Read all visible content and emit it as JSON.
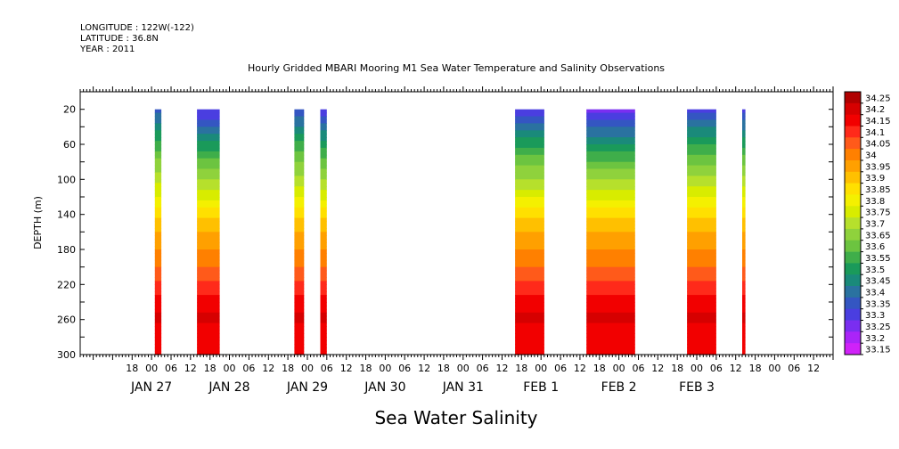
{
  "header": {
    "longitude": "LONGITUDE : 122W(-122)",
    "latitude": "LATITUDE : 36.8N",
    "year": "YEAR : 2011"
  },
  "chart_data": {
    "type": "heatmap",
    "title": "Hourly Gridded MBARI Mooring M1 Sea Water Temperature and Salinity Observations",
    "xlabel": "Sea Water Salinity",
    "ylabel": "DEPTH (m)",
    "y_axis": {
      "reversed": true,
      "ylim": [
        300,
        0
      ],
      "ticks": [
        20,
        60,
        100,
        140,
        180,
        220,
        260,
        300
      ]
    },
    "x_axis": {
      "unit": "hours since JAN 27 00:00",
      "xlim": [
        -22,
        210
      ],
      "hour_ticks": [
        {
          "h": -6,
          "label": "18"
        },
        {
          "h": 0,
          "label": "00"
        },
        {
          "h": 6,
          "label": "06"
        },
        {
          "h": 12,
          "label": "12"
        },
        {
          "h": 18,
          "label": "18"
        },
        {
          "h": 24,
          "label": "00"
        },
        {
          "h": 30,
          "label": "06"
        },
        {
          "h": 36,
          "label": "12"
        },
        {
          "h": 42,
          "label": "18"
        },
        {
          "h": 48,
          "label": "00"
        },
        {
          "h": 54,
          "label": "06"
        },
        {
          "h": 60,
          "label": "12"
        },
        {
          "h": 66,
          "label": "18"
        },
        {
          "h": 72,
          "label": "00"
        },
        {
          "h": 78,
          "label": "06"
        },
        {
          "h": 84,
          "label": "12"
        },
        {
          "h": 90,
          "label": "18"
        },
        {
          "h": 96,
          "label": "00"
        },
        {
          "h": 102,
          "label": "06"
        },
        {
          "h": 108,
          "label": "12"
        },
        {
          "h": 114,
          "label": "18"
        },
        {
          "h": 120,
          "label": "00"
        },
        {
          "h": 126,
          "label": "06"
        },
        {
          "h": 132,
          "label": "12"
        },
        {
          "h": 138,
          "label": "18"
        },
        {
          "h": 144,
          "label": "00"
        },
        {
          "h": 150,
          "label": "06"
        },
        {
          "h": 156,
          "label": "12"
        },
        {
          "h": 162,
          "label": "18"
        },
        {
          "h": 168,
          "label": "00"
        },
        {
          "h": 174,
          "label": "06"
        },
        {
          "h": 180,
          "label": "12"
        },
        {
          "h": 186,
          "label": "18"
        },
        {
          "h": 192,
          "label": "00"
        },
        {
          "h": 198,
          "label": "06"
        },
        {
          "h": 204,
          "label": "12"
        }
      ],
      "day_labels": [
        {
          "h": 0,
          "label": "JAN 27"
        },
        {
          "h": 24,
          "label": "JAN 28"
        },
        {
          "h": 48,
          "label": "JAN 29"
        },
        {
          "h": 72,
          "label": "JAN 30"
        },
        {
          "h": 96,
          "label": "JAN 31"
        },
        {
          "h": 120,
          "label": "FEB  1"
        },
        {
          "h": 144,
          "label": "FEB  2"
        },
        {
          "h": 168,
          "label": "FEB  3"
        }
      ]
    },
    "colorbar": {
      "levels": [
        34.25,
        34.2,
        34.15,
        34.1,
        34.05,
        34,
        33.95,
        33.9,
        33.85,
        33.8,
        33.75,
        33.7,
        33.65,
        33.6,
        33.55,
        33.5,
        33.45,
        33.4,
        33.35,
        33.3,
        33.25,
        33.2,
        33.15
      ],
      "labels": [
        "34.25",
        "34.2",
        "34.15",
        "34.1",
        "34.05",
        "34",
        "33.95",
        "33.9",
        "33.85",
        "33.8",
        "33.75",
        "33.7",
        "33.65",
        "33.6",
        "33.55",
        "33.5",
        "33.45",
        "33.4",
        "33.35",
        "33.3",
        "33.25",
        "33.2",
        "33.15"
      ],
      "colors": [
        "#b00000",
        "#d60000",
        "#f20000",
        "#ff2a1a",
        "#ff5a1a",
        "#ff8000",
        "#ffa000",
        "#ffc000",
        "#ffe000",
        "#f4f000",
        "#d8ec00",
        "#b6e02c",
        "#8fd23c",
        "#6cc440",
        "#3fae4a",
        "#1a9a5a",
        "#1a8a7a",
        "#2a72a0",
        "#3456c2",
        "#4a3ee0",
        "#7a2ef0",
        "#aa24f8",
        "#d022f8"
      ]
    },
    "profile": {
      "depth": [
        20,
        40,
        60,
        80,
        100,
        120,
        140,
        160,
        180,
        200,
        220,
        240,
        260,
        280,
        300
      ],
      "salinity": [
        33.35,
        33.46,
        33.56,
        33.65,
        33.72,
        33.8,
        33.88,
        33.95,
        34.0,
        34.05,
        34.12,
        34.17,
        34.22,
        34.15,
        34.15
      ]
    },
    "data_blocks": [
      {
        "start": 1,
        "end": 3,
        "surface_shift": 0.02
      },
      {
        "start": 14,
        "end": 21,
        "surface_shift": -0.06
      },
      {
        "start": 44,
        "end": 47,
        "surface_shift": 0.0
      },
      {
        "start": 52,
        "end": 54,
        "surface_shift": -0.05
      },
      {
        "start": 112,
        "end": 121,
        "surface_shift": -0.04
      },
      {
        "start": 134,
        "end": 149,
        "surface_shift": -0.08
      },
      {
        "start": 165,
        "end": 174,
        "surface_shift": -0.02
      },
      {
        "start": 182,
        "end": 183,
        "surface_shift": -0.03
      }
    ]
  }
}
